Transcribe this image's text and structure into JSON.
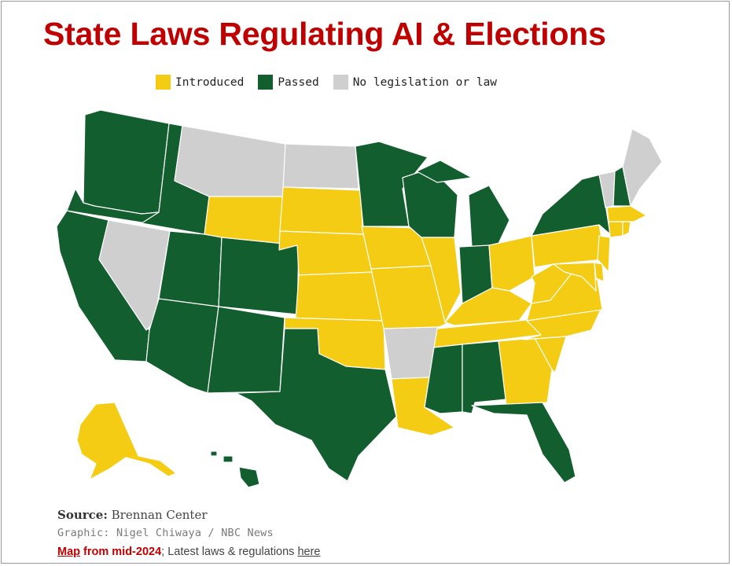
{
  "title": "State Laws Regulating AI & Elections",
  "legend": [
    {
      "key": "introduced",
      "label": "Introduced",
      "color": "#f5cc14"
    },
    {
      "key": "passed",
      "label": "Passed",
      "color": "#135e2e"
    },
    {
      "key": "none",
      "label": "No legislation or law",
      "color": "#cfcfcf"
    }
  ],
  "footer": {
    "source_label": "Source:",
    "source_value": "Brennan Center",
    "credit": "Graphic: Nigel Chiwaya / NBC News",
    "map_link": "Map",
    "note_rest": "from mid-2024",
    "note_sep": ";",
    "note_tail": "Latest laws & regulations",
    "here_link": "here"
  },
  "states": {
    "WA": "passed",
    "OR": "passed",
    "CA": "passed",
    "ID": "passed",
    "NV": "none",
    "MT": "none",
    "WY": "introduced",
    "UT": "passed",
    "AZ": "passed",
    "CO": "passed",
    "NM": "passed",
    "ND": "none",
    "SD": "introduced",
    "NE": "introduced",
    "KS": "introduced",
    "OK": "introduced",
    "TX": "passed",
    "MN": "passed",
    "IA": "introduced",
    "MO": "introduced",
    "AR": "none",
    "LA": "introduced",
    "WI": "passed",
    "IL": "introduced",
    "MI": "passed",
    "IN": "passed",
    "OH": "introduced",
    "KY": "introduced",
    "TN": "introduced",
    "MS": "passed",
    "AL": "passed",
    "GA": "introduced",
    "FL": "passed",
    "SC": "introduced",
    "NC": "introduced",
    "VA": "introduced",
    "WV": "introduced",
    "PA": "introduced",
    "NY": "passed",
    "VT": "none",
    "NH": "passed",
    "ME": "none",
    "MA": "introduced",
    "CT": "introduced",
    "RI": "introduced",
    "NJ": "introduced",
    "DE": "introduced",
    "MD": "introduced",
    "AK": "introduced",
    "HI": "passed"
  }
}
